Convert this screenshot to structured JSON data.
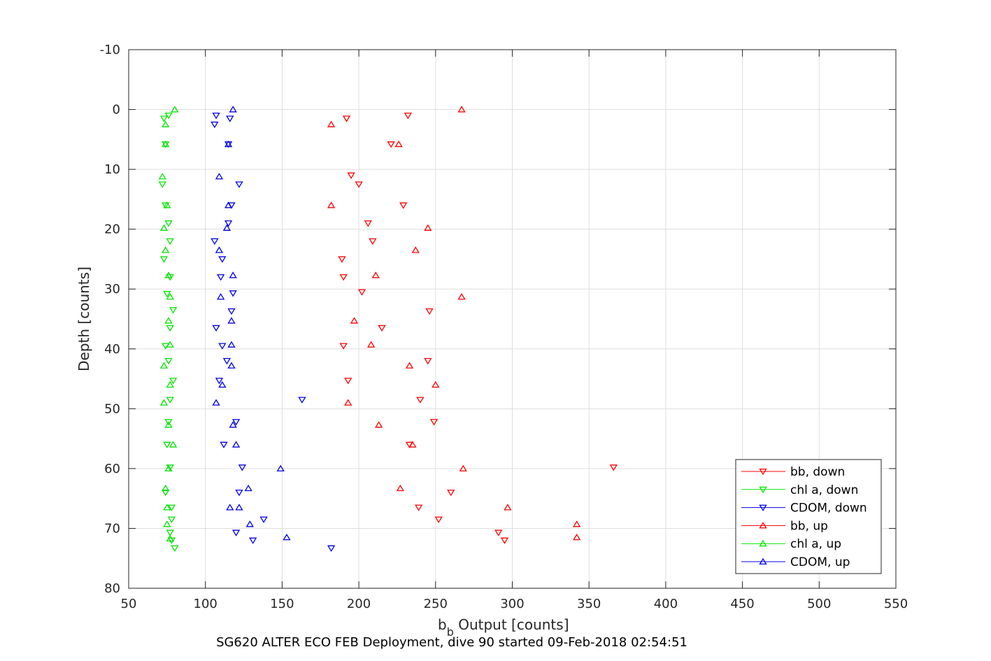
{
  "chart_data": {
    "type": "scatter",
    "xlabel": "b",
    "xlabel_sub": "b",
    "xlabel_rest": " Output [counts]",
    "ylabel": "Depth [counts]",
    "caption": "SG620 ALTER ECO FEB Deployment, dive 90 started 09-Feb-2018 02:54:51",
    "xlim": [
      50,
      550
    ],
    "ylim": [
      -10,
      80
    ],
    "y_reversed": true,
    "x_ticks": [
      50,
      100,
      150,
      200,
      250,
      300,
      350,
      400,
      450,
      500,
      550
    ],
    "y_ticks": [
      -10,
      0,
      10,
      20,
      30,
      40,
      50,
      60,
      70,
      80
    ],
    "grid": true,
    "legend_position": "bottom-right",
    "series": [
      {
        "name": "bb, down",
        "color": "#ff0000",
        "marker": "triangle-down",
        "points": [
          [
            232,
            1
          ],
          [
            192,
            1.5
          ],
          [
            221,
            5.8
          ],
          [
            195,
            11
          ],
          [
            200,
            12.5
          ],
          [
            229,
            16
          ],
          [
            206,
            19
          ],
          [
            209,
            22
          ],
          [
            189,
            25
          ],
          [
            190,
            28
          ],
          [
            202,
            30.5
          ],
          [
            246,
            33.7
          ],
          [
            215,
            36.5
          ],
          [
            190,
            39.5
          ],
          [
            245,
            42
          ],
          [
            193,
            45.3
          ],
          [
            240,
            48.5
          ],
          [
            249,
            52.2
          ],
          [
            233,
            56
          ],
          [
            366,
            59.8
          ],
          [
            260,
            64
          ],
          [
            239,
            66.5
          ],
          [
            252,
            68.5
          ],
          [
            291,
            70.7
          ],
          [
            295,
            72
          ]
        ]
      },
      {
        "name": "chl a, down",
        "color": "#00e600",
        "marker": "triangle-down",
        "points": [
          [
            76,
            1
          ],
          [
            73,
            1.5
          ],
          [
            74,
            5.8
          ],
          [
            72,
            12.5
          ],
          [
            74,
            16
          ],
          [
            76,
            19
          ],
          [
            77,
            22
          ],
          [
            73,
            25
          ],
          [
            77,
            28
          ],
          [
            75,
            30.8
          ],
          [
            79,
            33.5
          ],
          [
            77,
            36.5
          ],
          [
            74,
            39.5
          ],
          [
            76,
            42
          ],
          [
            79,
            45.3
          ],
          [
            77,
            48.5
          ],
          [
            76,
            52.2
          ],
          [
            75,
            56
          ],
          [
            77,
            59.8
          ],
          [
            74,
            64
          ],
          [
            78,
            66.5
          ],
          [
            78,
            68.5
          ],
          [
            77,
            70.7
          ],
          [
            78,
            72
          ],
          [
            80,
            73.3
          ]
        ]
      },
      {
        "name": "CDOM, down",
        "color": "#0000e6",
        "marker": "triangle-down",
        "points": [
          [
            107,
            1
          ],
          [
            116,
            1.5
          ],
          [
            106,
            2.5
          ],
          [
            115,
            5.8
          ],
          [
            122,
            12.5
          ],
          [
            117,
            16
          ],
          [
            115,
            19
          ],
          [
            106,
            22
          ],
          [
            111,
            25
          ],
          [
            110,
            28
          ],
          [
            118,
            30.7
          ],
          [
            117,
            33.7
          ],
          [
            107,
            36.5
          ],
          [
            111,
            39.5
          ],
          [
            114,
            42
          ],
          [
            109,
            45.3
          ],
          [
            163,
            48.5
          ],
          [
            120,
            52.2
          ],
          [
            112,
            56
          ],
          [
            124,
            59.8
          ],
          [
            122,
            64
          ],
          [
            138,
            68.5
          ],
          [
            120,
            70.7
          ],
          [
            131,
            72
          ],
          [
            182,
            73.3
          ]
        ]
      },
      {
        "name": "bb, up",
        "color": "#ff0000",
        "marker": "triangle-up",
        "points": [
          [
            267,
            0
          ],
          [
            182,
            2.5
          ],
          [
            226,
            5.8
          ],
          [
            182,
            16
          ],
          [
            245,
            19.8
          ],
          [
            237,
            23.5
          ],
          [
            211,
            27.7
          ],
          [
            267,
            31.3
          ],
          [
            197,
            35.3
          ],
          [
            208,
            39.3
          ],
          [
            233,
            42.8
          ],
          [
            250,
            46
          ],
          [
            193,
            49
          ],
          [
            213,
            52.7
          ],
          [
            235,
            56
          ],
          [
            268,
            60
          ],
          [
            227,
            63.3
          ],
          [
            297,
            66.5
          ],
          [
            342,
            69.3
          ],
          [
            342,
            71.5
          ]
        ]
      },
      {
        "name": "chl a, up",
        "color": "#00e600",
        "marker": "triangle-up",
        "points": [
          [
            80,
            0
          ],
          [
            74,
            2.5
          ],
          [
            74,
            5.8
          ],
          [
            72,
            11.2
          ],
          [
            75,
            16
          ],
          [
            73,
            19.8
          ],
          [
            74,
            23.5
          ],
          [
            76,
            27.7
          ],
          [
            77,
            31.3
          ],
          [
            76,
            35.3
          ],
          [
            77,
            39.3
          ],
          [
            73,
            42.8
          ],
          [
            77,
            46
          ],
          [
            73,
            49
          ],
          [
            76,
            52.7
          ],
          [
            79,
            56
          ],
          [
            76,
            60
          ],
          [
            74,
            63.3
          ],
          [
            75,
            66.5
          ],
          [
            75,
            69.3
          ],
          [
            77,
            71.7
          ]
        ]
      },
      {
        "name": "CDOM, up",
        "color": "#0000e6",
        "marker": "triangle-up",
        "points": [
          [
            118,
            0
          ],
          [
            115,
            5.8
          ],
          [
            109,
            11.2
          ],
          [
            115,
            16
          ],
          [
            114,
            19.8
          ],
          [
            109,
            23.5
          ],
          [
            118,
            27.7
          ],
          [
            110,
            31.3
          ],
          [
            117,
            35.3
          ],
          [
            117,
            39.3
          ],
          [
            117,
            42.8
          ],
          [
            111,
            46
          ],
          [
            107,
            49
          ],
          [
            118,
            52.7
          ],
          [
            120,
            56
          ],
          [
            149,
            60
          ],
          [
            128,
            63.3
          ],
          [
            122,
            66.5
          ],
          [
            116,
            66.5
          ],
          [
            129,
            69.3
          ],
          [
            153,
            71.5
          ]
        ]
      }
    ]
  }
}
